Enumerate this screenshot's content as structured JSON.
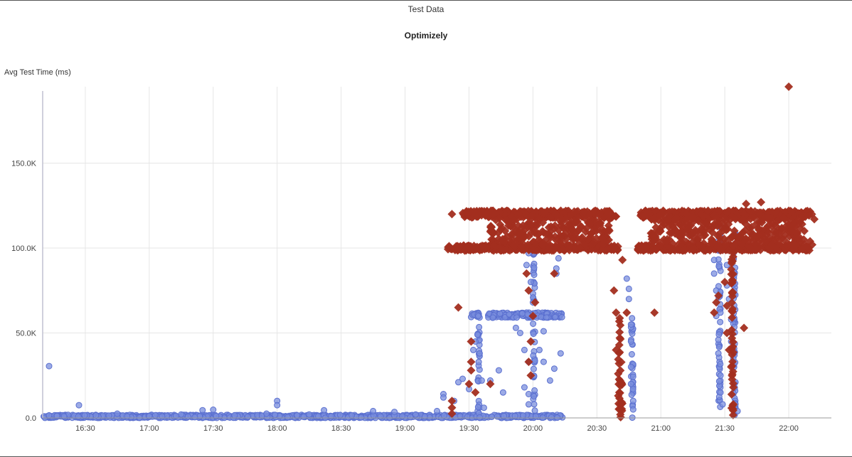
{
  "chart_data": {
    "type": "scatter",
    "title": "Test Data",
    "subtitle": "Optimizely",
    "ylabel": "Avg Test Time (ms)",
    "xlabel": "",
    "grid": true,
    "xlim": [
      "16:10",
      "22:20"
    ],
    "ylim": [
      0,
      195000
    ],
    "x_ticks": [
      "16:30",
      "17:00",
      "17:30",
      "18:00",
      "18:30",
      "19:00",
      "19:30",
      "20:00",
      "20:30",
      "21:00",
      "21:30",
      "22:00"
    ],
    "y_ticks": [
      "0.0",
      "50.0K",
      "100.0K",
      "150.0K"
    ],
    "y_tick_values": [
      0,
      50000,
      100000,
      150000
    ],
    "colors": {
      "series_a": "#7b8fde",
      "series_b": "#a32e1f",
      "grid": "#e6e6e6",
      "axis": "#c0c0d0"
    },
    "series": [
      {
        "marker": "circle",
        "color": "#7b8fde",
        "points": [
          [
            "16:13",
            30500
          ],
          [
            "16:13",
            1500
          ],
          [
            "16:20",
            1000
          ],
          [
            "16:27",
            7500
          ],
          [
            "16:35",
            1500
          ],
          [
            "16:45",
            2500
          ],
          [
            "17:00",
            1000
          ],
          [
            "17:15",
            2000
          ],
          [
            "17:25",
            4500
          ],
          [
            "17:30",
            4800
          ],
          [
            "17:40",
            1500
          ],
          [
            "17:55",
            2500
          ],
          [
            "18:00",
            10000
          ],
          [
            "18:00",
            7500
          ],
          [
            "18:15",
            2000
          ],
          [
            "18:22",
            4500
          ],
          [
            "18:35",
            1500
          ],
          [
            "18:45",
            4000
          ],
          [
            "18:55",
            3500
          ],
          [
            "19:05",
            2000
          ],
          [
            "19:15",
            4000
          ],
          [
            "19:18",
            14000
          ],
          [
            "19:18",
            12000
          ],
          [
            "19:23",
            10000
          ],
          [
            "19:25",
            21000
          ],
          [
            "19:27",
            23000
          ],
          [
            "19:30",
            17000
          ],
          [
            "19:32",
            40000
          ],
          [
            "19:33",
            45000
          ],
          [
            "19:34",
            49000
          ],
          [
            "19:35",
            38000
          ],
          [
            "19:36",
            22000
          ],
          [
            "19:37",
            6000
          ],
          [
            "19:40",
            22000
          ],
          [
            "19:44",
            28000
          ],
          [
            "19:46",
            15000
          ],
          [
            "19:52",
            53000
          ],
          [
            "19:54",
            50000
          ],
          [
            "19:56",
            40000
          ],
          [
            "19:56",
            18000
          ],
          [
            "19:58",
            33000
          ],
          [
            "19:58",
            14000
          ],
          [
            "19:58",
            8000
          ],
          [
            "19:57",
            90000
          ],
          [
            "19:58",
            97000
          ],
          [
            "19:59",
            80000
          ],
          [
            "20:00",
            68000
          ],
          [
            "20:03",
            40000
          ],
          [
            "20:05",
            51000
          ],
          [
            "20:05",
            33000
          ],
          [
            "20:08",
            22000
          ],
          [
            "20:10",
            29000
          ],
          [
            "20:11",
            85000
          ],
          [
            "20:11",
            88000
          ],
          [
            "20:12",
            94000
          ],
          [
            "20:13",
            38000
          ],
          [
            "20:44",
            82000
          ],
          [
            "20:45",
            76000
          ],
          [
            "20:45",
            70000
          ],
          [
            "20:46",
            55000
          ],
          [
            "20:46",
            45000
          ],
          [
            "20:46",
            30000
          ],
          [
            "20:46",
            20000
          ],
          [
            "20:47",
            10000
          ],
          [
            "20:47",
            5000
          ],
          [
            "21:25",
            93000
          ],
          [
            "21:25",
            85000
          ],
          [
            "21:26",
            75000
          ],
          [
            "21:26",
            60000
          ],
          [
            "21:27",
            46000
          ],
          [
            "21:27",
            38000
          ],
          [
            "21:28",
            25000
          ],
          [
            "21:28",
            15000
          ],
          [
            "21:29",
            8000
          ],
          [
            "21:30",
            112000
          ],
          [
            "21:31",
            90000
          ],
          [
            "21:31",
            78000
          ],
          [
            "21:32",
            70000
          ],
          [
            "21:33",
            58000
          ],
          [
            "21:33",
            45000
          ],
          [
            "21:34",
            35000
          ],
          [
            "21:35",
            21000
          ],
          [
            "21:35",
            8000
          ],
          [
            "21:36",
            4000
          ]
        ],
        "bands": [
          {
            "x_from": "16:10",
            "x_to": "20:14",
            "y_from": 0,
            "y_to": 1800
          },
          {
            "x_from": "19:31",
            "x_to": "19:35",
            "y_from": 59000,
            "y_to": 62000
          },
          {
            "x_from": "19:39",
            "x_to": "20:14",
            "y_from": 59000,
            "y_to": 62000
          },
          {
            "x_from": "19:34",
            "x_to": "19:35",
            "y_from": 0,
            "y_to": 62000
          },
          {
            "x_from": "20:00",
            "x_to": "20:01",
            "y_from": 0,
            "y_to": 100000
          },
          {
            "x_from": "20:46",
            "x_to": "20:47",
            "y_from": 0,
            "y_to": 62000
          },
          {
            "x_from": "21:27",
            "x_to": "21:28",
            "y_from": 0,
            "y_to": 115000
          },
          {
            "x_from": "21:34",
            "x_to": "21:35",
            "y_from": 0,
            "y_to": 112000
          }
        ]
      },
      {
        "marker": "diamond",
        "color": "#a32e1f",
        "points": [
          [
            "19:22",
            120000
          ],
          [
            "19:25",
            65000
          ],
          [
            "19:22",
            2500
          ],
          [
            "19:22",
            6000
          ],
          [
            "19:22",
            10000
          ],
          [
            "19:30",
            20000
          ],
          [
            "19:31",
            28000
          ],
          [
            "19:31",
            33000
          ],
          [
            "19:31",
            45000
          ],
          [
            "19:33",
            15000
          ],
          [
            "19:40",
            20000
          ],
          [
            "19:57",
            85000
          ],
          [
            "19:58",
            75000
          ],
          [
            "19:58",
            33000
          ],
          [
            "19:59",
            25000
          ],
          [
            "19:59",
            45000
          ],
          [
            "20:00",
            60000
          ],
          [
            "20:01",
            68000
          ],
          [
            "20:10",
            85000
          ],
          [
            "20:38",
            75000
          ],
          [
            "20:39",
            62000
          ],
          [
            "20:39",
            40000
          ],
          [
            "20:40",
            26000
          ],
          [
            "20:40",
            13000
          ],
          [
            "20:41",
            8000
          ],
          [
            "20:41",
            2000
          ],
          [
            "20:42",
            93000
          ],
          [
            "20:44",
            62000
          ],
          [
            "20:57",
            62000
          ],
          [
            "21:25",
            62000
          ],
          [
            "21:26",
            68000
          ],
          [
            "21:27",
            72000
          ],
          [
            "21:30",
            80000
          ],
          [
            "21:31",
            66000
          ],
          [
            "21:31",
            50000
          ],
          [
            "21:32",
            40000
          ],
          [
            "21:33",
            30000
          ],
          [
            "21:34",
            18000
          ],
          [
            "21:34",
            8000
          ],
          [
            "21:39",
            53000
          ],
          [
            "21:40",
            126000
          ],
          [
            "21:47",
            127000
          ],
          [
            "22:00",
            198000
          ],
          [
            "22:12",
            117000
          ],
          [
            "22:10",
            104000
          ],
          [
            "22:11",
            102000
          ]
        ],
        "bands": [
          {
            "x_from": "19:27",
            "x_to": "20:39",
            "y_from": 118000,
            "y_to": 122000
          },
          {
            "x_from": "19:20",
            "x_to": "20:40",
            "y_from": 98500,
            "y_to": 101500
          },
          {
            "x_from": "19:40",
            "x_to": "20:36",
            "y_from": 101500,
            "y_to": 118000
          },
          {
            "x_from": "20:50",
            "x_to": "22:11",
            "y_from": 118000,
            "y_to": 122000
          },
          {
            "x_from": "20:49",
            "x_to": "22:10",
            "y_from": 98500,
            "y_to": 101500
          },
          {
            "x_from": "20:55",
            "x_to": "22:08",
            "y_from": 101500,
            "y_to": 118000
          },
          {
            "x_from": "20:40",
            "x_to": "20:42",
            "y_from": 0,
            "y_to": 60000
          },
          {
            "x_from": "21:33",
            "x_to": "21:34",
            "y_from": 0,
            "y_to": 98000
          }
        ]
      }
    ]
  }
}
